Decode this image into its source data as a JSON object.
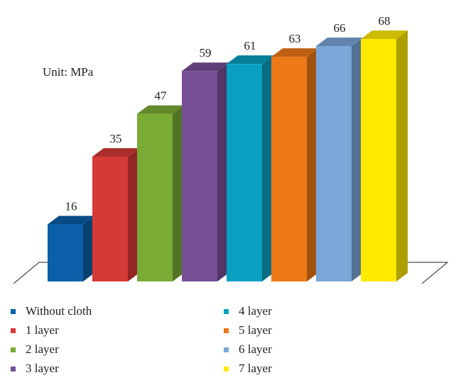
{
  "chart_data": {
    "type": "bar",
    "unit_label": "Unit: MPa",
    "categories": [
      "Without cloth",
      "1 layer",
      "2 layer",
      "3 layer",
      "4 layer",
      "5 layer",
      "6 layer",
      "7 layer"
    ],
    "values": [
      16,
      35,
      47,
      59,
      61,
      63,
      66,
      68
    ],
    "value_labels": [
      "16",
      "35",
      "47",
      "59",
      "61",
      "63",
      "66",
      "68"
    ],
    "colors": [
      "#0a5fa8",
      "#d63a37",
      "#7aab35",
      "#774f96",
      "#0aa0c1",
      "#ed7817",
      "#7ba6d8",
      "#ffea00"
    ],
    "style": "3d-columns",
    "legend_position": "bottom",
    "grid": false
  }
}
